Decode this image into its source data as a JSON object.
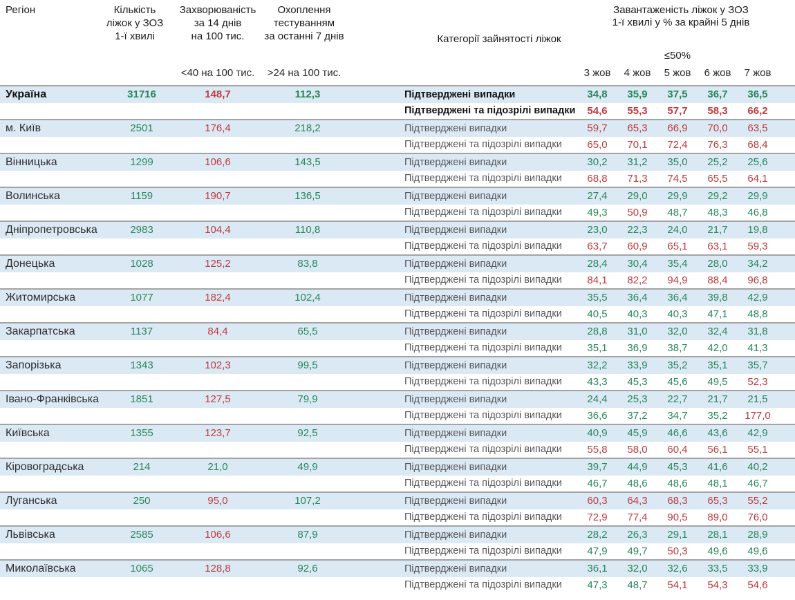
{
  "header": {
    "region": "Регіон",
    "beds": "Кількість\nліжок у ЗОЗ\n1-ї хвилі",
    "incidence": "Захворюваність\nза 14 днів\nна 100 тис.",
    "testing": "Охоплення\nтестуванням\nза останні 7 днів",
    "category": "Категорії зайнятості ліжок",
    "occupancy": "Завантаженість ліжок у ЗОЗ\n1-ї хвилі у % за крайні 5 днів",
    "occupancy_threshold": "≤50%",
    "incidence_threshold": "<40 на 100 тис.",
    "testing_threshold": ">24 на 100 тис.",
    "dates": [
      "3 жов",
      "4 жов",
      "5 жов",
      "6 жов",
      "7 жов"
    ]
  },
  "category_labels": {
    "confirmed": "Підтверджені випадки",
    "suspected": "Підтверджені та підозрілі випадки"
  },
  "thresholds": {
    "incidence_green_below": 40,
    "testing_green_above": 24,
    "occupancy_green_max": 50
  },
  "colors": {
    "green": "#27875a",
    "red": "#c03a3c",
    "row_highlight": "#dbe9f5",
    "separator": "#a3a3a3"
  },
  "regions": [
    {
      "name": "Україна",
      "bold": true,
      "beds": "31716",
      "incidence": "148,7",
      "testing": "112,3",
      "confirmed": [
        "34,8",
        "35,9",
        "37,5",
        "36,7",
        "36,5"
      ],
      "confirmed_suspected": [
        "54,6",
        "55,3",
        "57,7",
        "58,3",
        "66,2"
      ]
    },
    {
      "name": "м. Київ",
      "bold": false,
      "beds": "2501",
      "incidence": "176,4",
      "testing": "218,2",
      "confirmed": [
        "59,7",
        "65,3",
        "66,9",
        "70,0",
        "63,5"
      ],
      "confirmed_suspected": [
        "65,0",
        "70,1",
        "72,4",
        "76,3",
        "68,4"
      ]
    },
    {
      "name": "Вінницька",
      "bold": false,
      "beds": "1299",
      "incidence": "106,6",
      "testing": "143,5",
      "confirmed": [
        "30,2",
        "31,2",
        "35,0",
        "25,2",
        "25,6"
      ],
      "confirmed_suspected": [
        "68,8",
        "71,3",
        "74,5",
        "65,5",
        "64,1"
      ]
    },
    {
      "name": "Волинська",
      "bold": false,
      "beds": "1159",
      "incidence": "190,7",
      "testing": "136,5",
      "confirmed": [
        "27,4",
        "29,0",
        "29,9",
        "29,2",
        "29,9"
      ],
      "confirmed_suspected": [
        "49,3",
        "50,9",
        "48,7",
        "48,3",
        "46,8"
      ]
    },
    {
      "name": "Дніпропетровська",
      "bold": false,
      "beds": "2983",
      "incidence": "104,4",
      "testing": "110,8",
      "confirmed": [
        "23,0",
        "22,3",
        "24,0",
        "21,7",
        "19,8"
      ],
      "confirmed_suspected": [
        "63,7",
        "60,9",
        "65,1",
        "63,1",
        "59,3"
      ]
    },
    {
      "name": "Донецька",
      "bold": false,
      "beds": "1028",
      "incidence": "125,2",
      "testing": "83,8",
      "confirmed": [
        "28,4",
        "30,4",
        "35,4",
        "28,0",
        "34,2"
      ],
      "confirmed_suspected": [
        "84,1",
        "82,2",
        "94,9",
        "88,4",
        "96,8"
      ]
    },
    {
      "name": "Житомирська",
      "bold": false,
      "beds": "1077",
      "incidence": "182,4",
      "testing": "102,4",
      "confirmed": [
        "35,5",
        "36,4",
        "36,4",
        "39,8",
        "42,9"
      ],
      "confirmed_suspected": [
        "40,5",
        "40,3",
        "40,3",
        "47,1",
        "48,8"
      ]
    },
    {
      "name": "Закарпатська",
      "bold": false,
      "beds": "1137",
      "incidence": "84,4",
      "testing": "65,5",
      "confirmed": [
        "28,8",
        "31,0",
        "32,0",
        "32,4",
        "31,8"
      ],
      "confirmed_suspected": [
        "35,1",
        "36,9",
        "38,7",
        "42,0",
        "41,3"
      ]
    },
    {
      "name": "Запорізька",
      "bold": false,
      "beds": "1343",
      "incidence": "102,3",
      "testing": "99,5",
      "confirmed": [
        "32,2",
        "33,9",
        "35,2",
        "35,1",
        "35,7"
      ],
      "confirmed_suspected": [
        "43,3",
        "45,3",
        "45,6",
        "49,5",
        "52,3"
      ]
    },
    {
      "name": "Івано-Франківська",
      "bold": false,
      "beds": "1851",
      "incidence": "127,5",
      "testing": "79,9",
      "confirmed": [
        "24,4",
        "25,3",
        "22,7",
        "21,7",
        "21,5"
      ],
      "confirmed_suspected": [
        "36,6",
        "37,2",
        "34,7",
        "35,2",
        "177,0"
      ]
    },
    {
      "name": "Київська",
      "bold": false,
      "beds": "1355",
      "incidence": "123,7",
      "testing": "92,5",
      "confirmed": [
        "40,9",
        "45,9",
        "46,6",
        "43,6",
        "42,9"
      ],
      "confirmed_suspected": [
        "55,8",
        "58,0",
        "60,4",
        "56,1",
        "55,1"
      ]
    },
    {
      "name": "Кіровоградська",
      "bold": false,
      "beds": "214",
      "incidence": "21,0",
      "testing": "49,9",
      "confirmed": [
        "39,7",
        "44,9",
        "45,3",
        "41,6",
        "40,2"
      ],
      "confirmed_suspected": [
        "46,7",
        "48,6",
        "48,6",
        "48,1",
        "46,7"
      ]
    },
    {
      "name": "Луганська",
      "bold": false,
      "beds": "250",
      "incidence": "95,0",
      "testing": "107,2",
      "confirmed": [
        "60,3",
        "64,3",
        "68,3",
        "65,3",
        "55,2"
      ],
      "confirmed_suspected": [
        "72,9",
        "77,4",
        "90,5",
        "89,0",
        "76,0"
      ]
    },
    {
      "name": "Львівська",
      "bold": false,
      "beds": "2585",
      "incidence": "106,6",
      "testing": "87,9",
      "confirmed": [
        "28,2",
        "26,3",
        "29,1",
        "28,1",
        "28,9"
      ],
      "confirmed_suspected": [
        "47,9",
        "49,7",
        "50,3",
        "49,6",
        "49,6"
      ]
    },
    {
      "name": "Миколаївська",
      "bold": false,
      "beds": "1065",
      "incidence": "128,8",
      "testing": "92,6",
      "confirmed": [
        "36,1",
        "32,0",
        "32,6",
        "33,5",
        "33,9"
      ],
      "confirmed_suspected": [
        "47,3",
        "48,7",
        "54,1",
        "54,3",
        "54,6"
      ]
    }
  ]
}
